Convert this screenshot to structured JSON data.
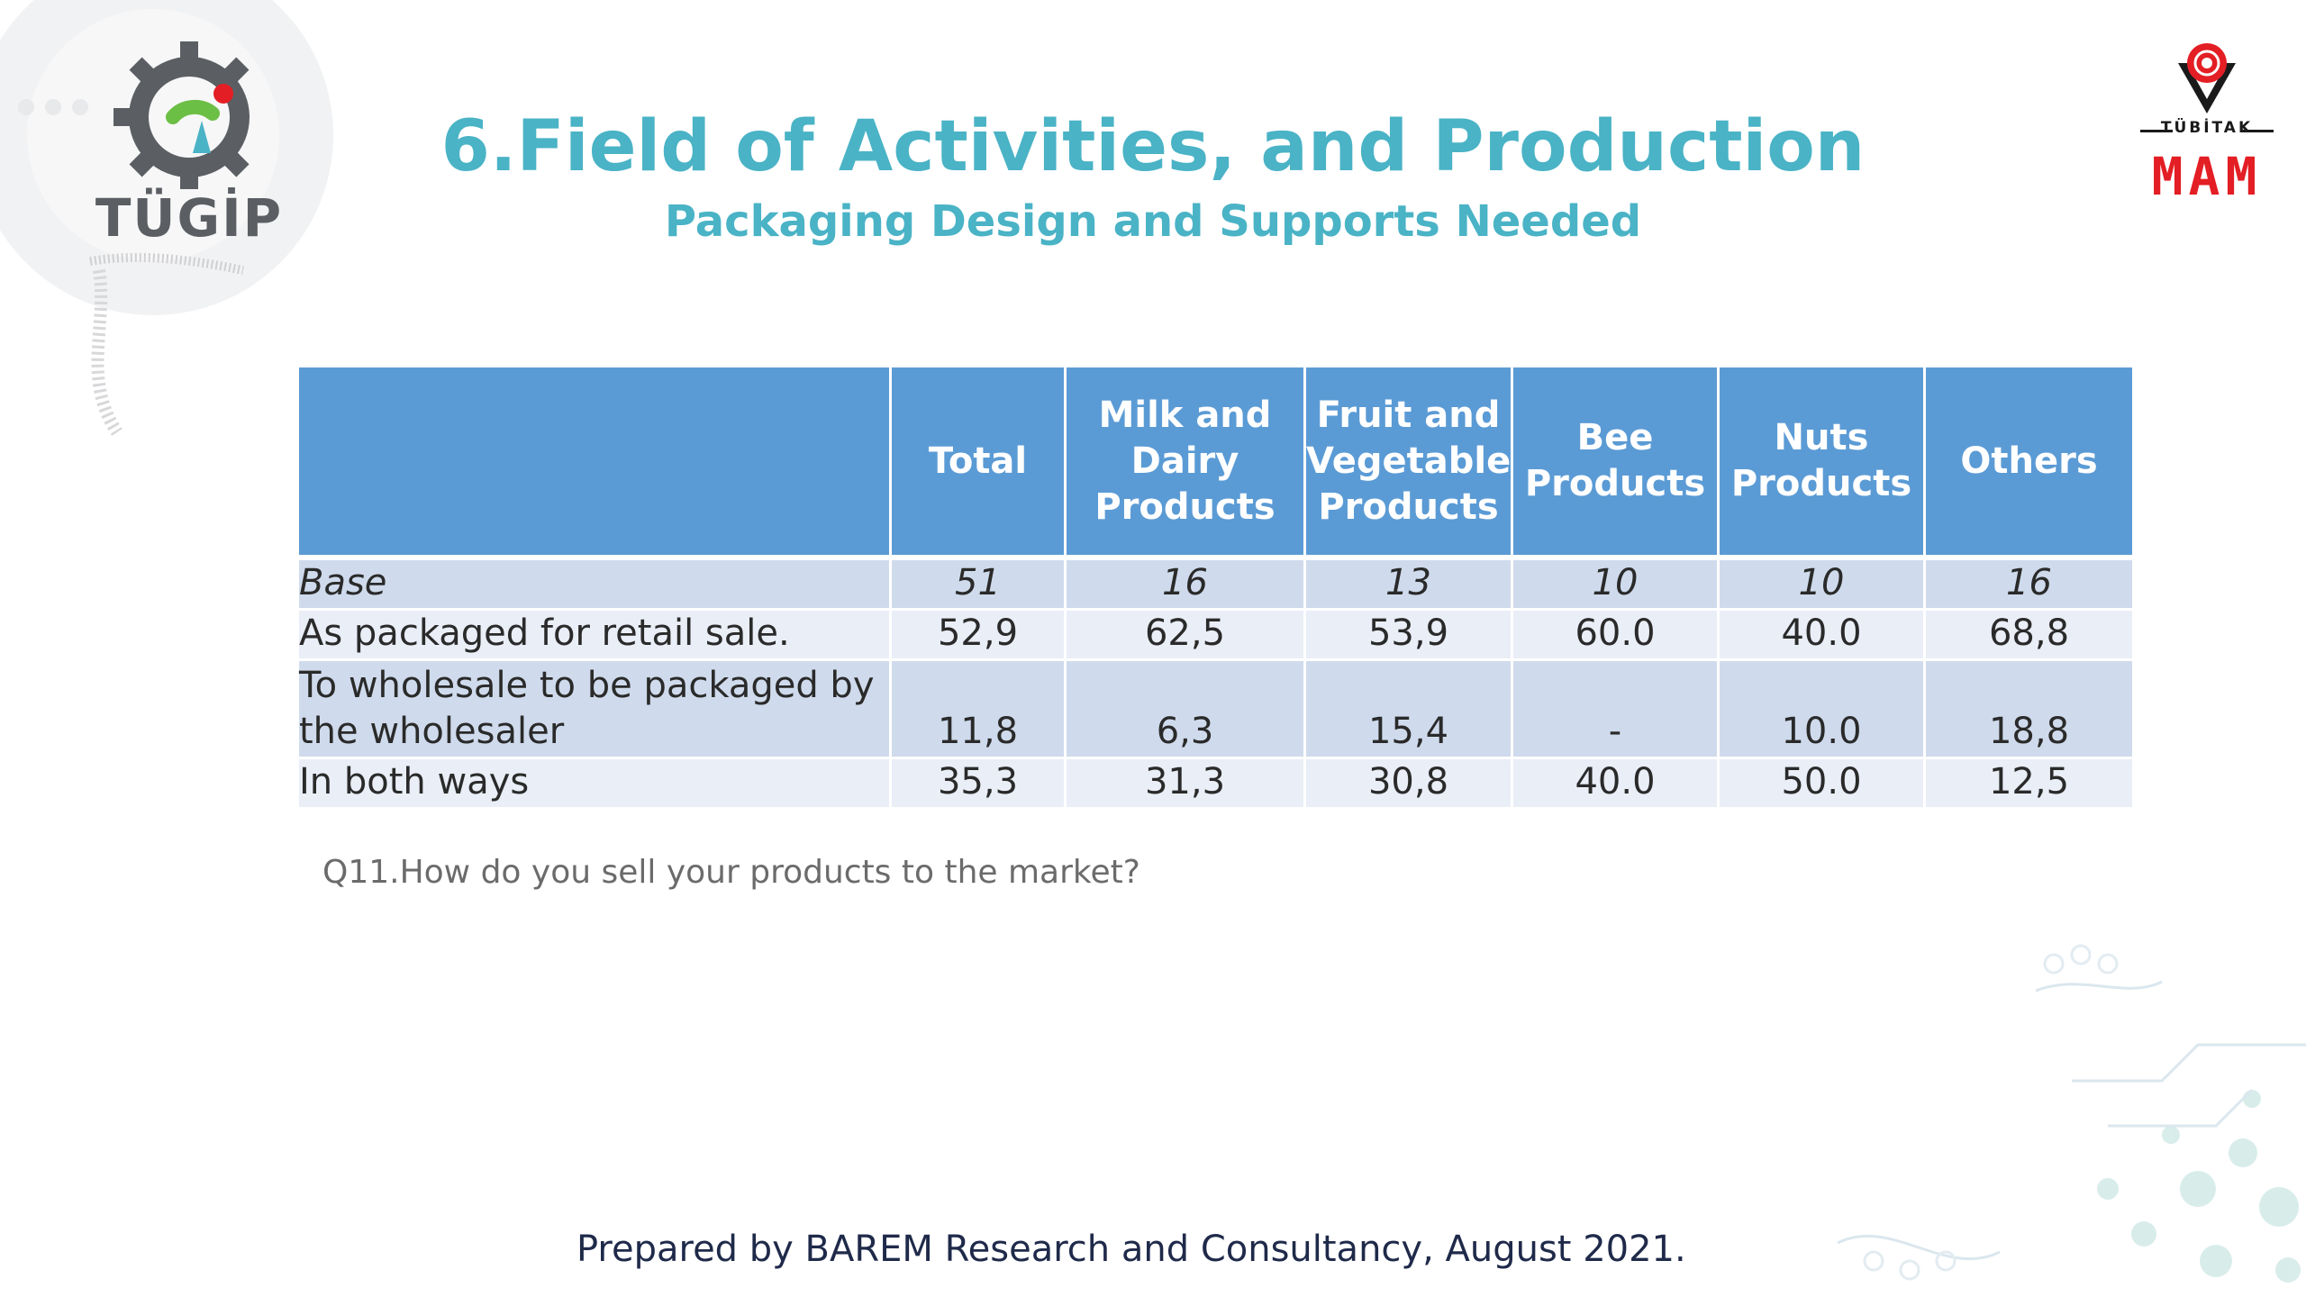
{
  "logos": {
    "tugip_text": "TÜGİP",
    "tubitak_text": "TÜBİTAK",
    "mam_text": "MAM"
  },
  "title": "6.Field of Activities, and Production",
  "subtitle": "Packaging Design and Supports Needed",
  "table": {
    "headers": [
      "",
      "Total",
      "Milk and Dairy Products",
      "Fruit and Vegetable Products",
      "Bee Products",
      "Nuts Products",
      "Others"
    ],
    "rows": [
      {
        "label": "Base",
        "values": [
          "51",
          "16",
          "13",
          "10",
          "10",
          "16"
        ]
      },
      {
        "label": "As packaged for retail sale.",
        "values": [
          "52,9",
          "62,5",
          "53,9",
          "60.0",
          "40.0",
          "68,8"
        ]
      },
      {
        "label": "To wholesale to be packaged by the wholesaler",
        "values": [
          "11,8",
          "6,3",
          "15,4",
          "-",
          "10.0",
          "18,8"
        ]
      },
      {
        "label": "In both ways",
        "values": [
          "35,3",
          "31,3",
          "30,8",
          "40.0",
          "50.0",
          "12,5"
        ]
      }
    ]
  },
  "question": "Q11.How do you sell your products to the market?",
  "footer": "Prepared by BAREM Research and Consultancy, August 2021.",
  "colors": {
    "title": "#4ab3c6",
    "header_bg": "#5b9bd5",
    "row_dark": "#cfdbec",
    "row_light": "#e9eef7",
    "tubitak_red": "#e31e24"
  }
}
